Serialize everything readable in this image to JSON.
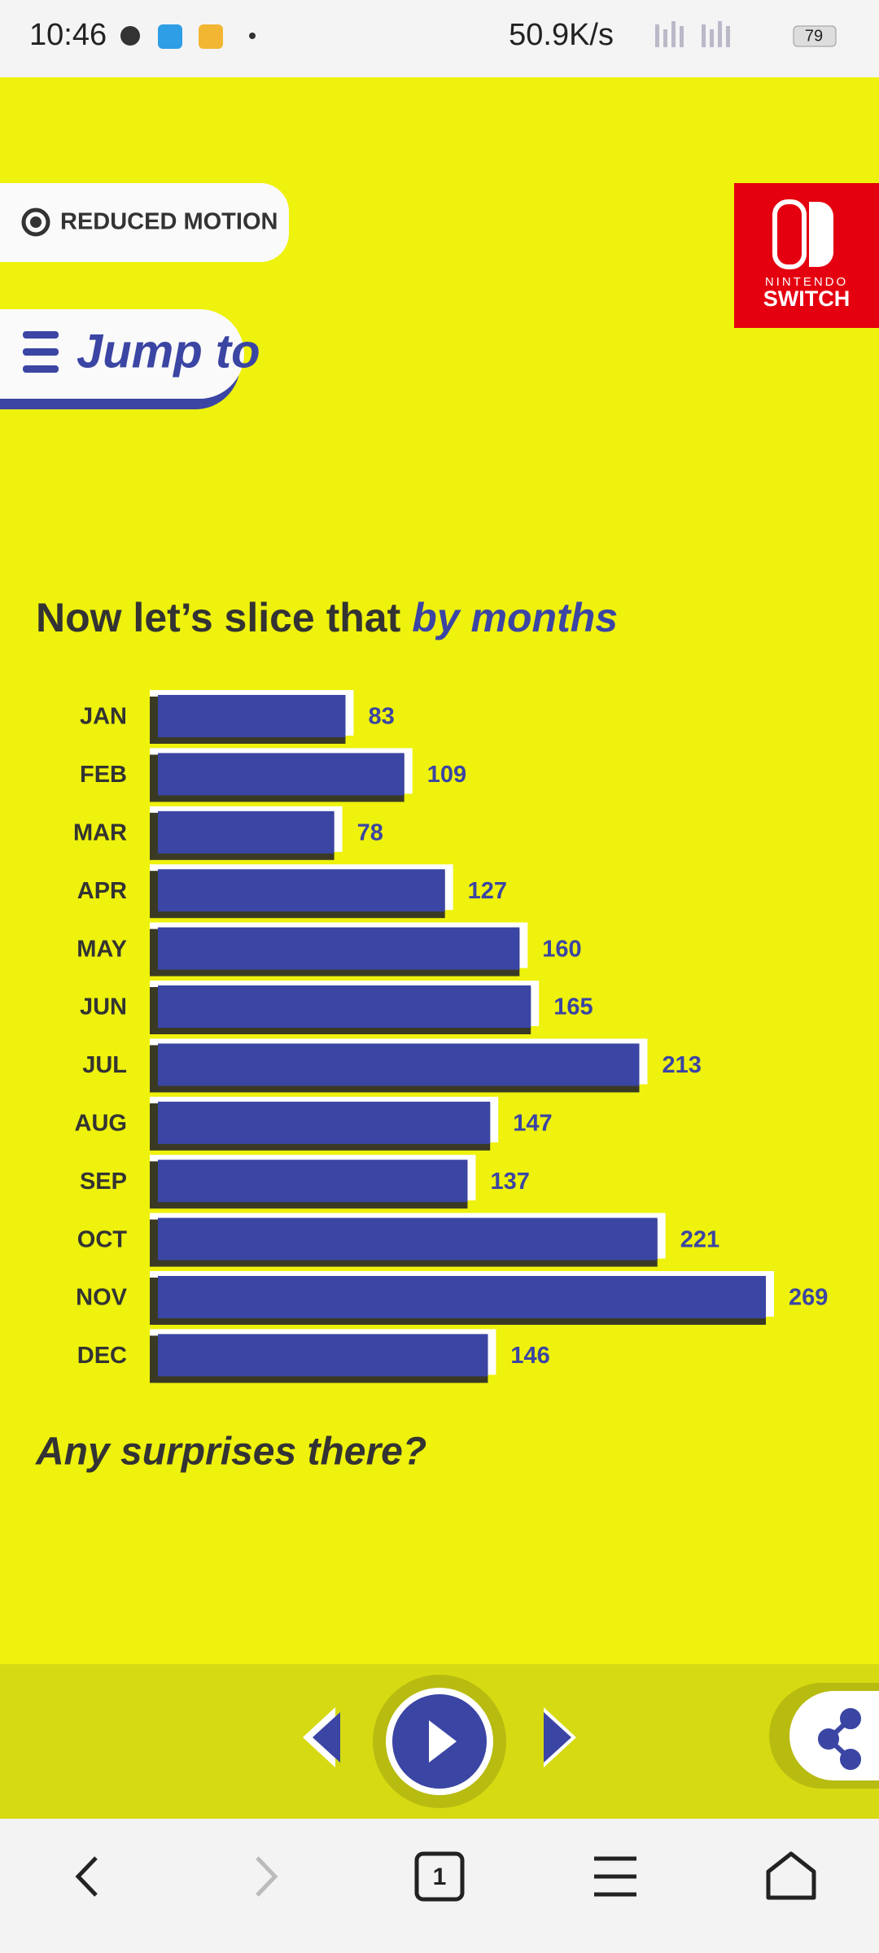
{
  "status_bar": {
    "time": "10:46",
    "speed": "50.9K/s",
    "battery": "79"
  },
  "buttons": {
    "reduced_motion": "REDUCED MOTION",
    "jump_to": "Jump to"
  },
  "logo": {
    "brand": "NINTENDO",
    "product": "SWITCH"
  },
  "chart_data": {
    "type": "bar",
    "orientation": "horizontal",
    "title": "Now let’s slice that",
    "title_emphasis": "by months",
    "categories": [
      "JAN",
      "FEB",
      "MAR",
      "APR",
      "MAY",
      "JUN",
      "JUL",
      "AUG",
      "SEP",
      "OCT",
      "NOV",
      "DEC"
    ],
    "values": [
      83,
      109,
      78,
      127,
      160,
      165,
      213,
      147,
      137,
      221,
      269,
      146
    ],
    "color": "#3b45a3"
  },
  "footer_text": "Any surprises there?",
  "browser_nav": {
    "tab_count": "1"
  }
}
